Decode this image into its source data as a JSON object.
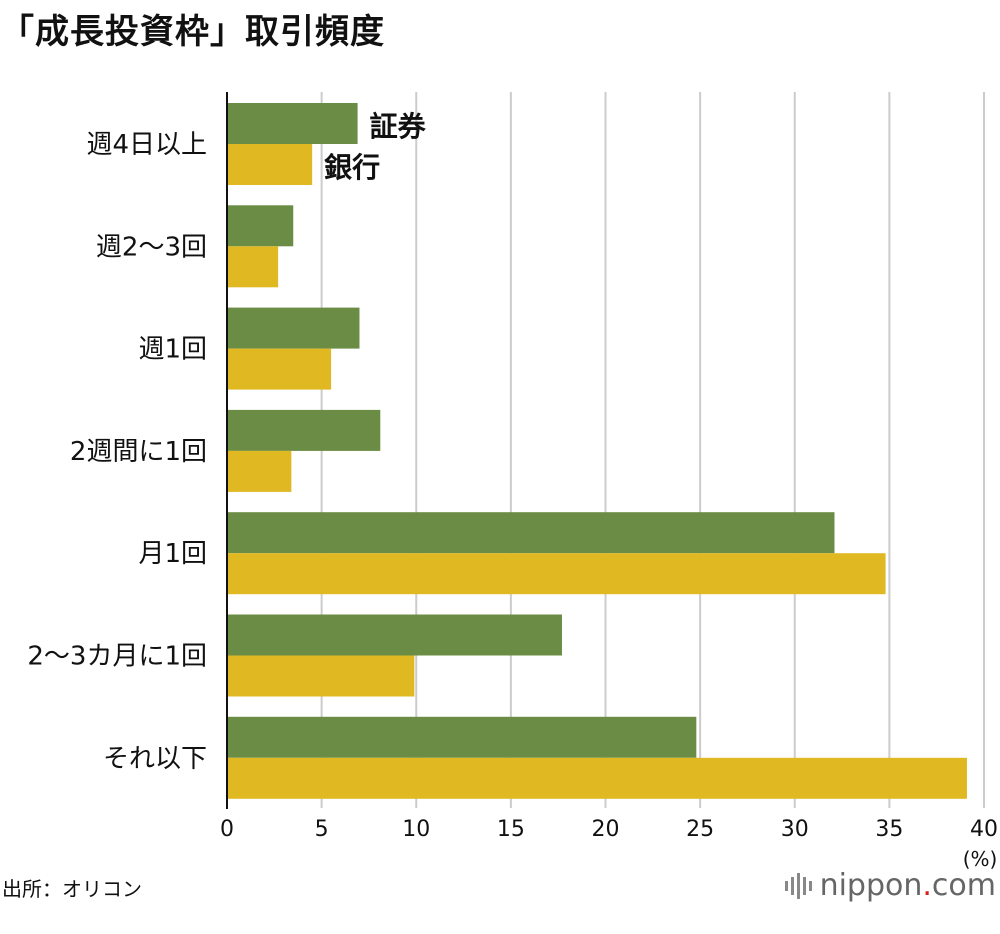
{
  "title": "「成長投資枠」取引頻度",
  "source": "出所：オリコン",
  "brand": {
    "name": "nippon",
    "dot": ".",
    "tld": "com"
  },
  "colors": {
    "securities": "#6a8c45",
    "bank": "#dfb822",
    "grid": "#cccccc",
    "axis": "#111111"
  },
  "chart_data": {
    "type": "bar",
    "orientation": "horizontal",
    "categories": [
      "週4日以上",
      "週2〜3回",
      "週1回",
      "2週間に1回",
      "月1回",
      "2〜3カ月に1回",
      "それ以下"
    ],
    "series": [
      {
        "name": "証券",
        "values": [
          6.9,
          3.5,
          7.0,
          8.1,
          32.1,
          17.7,
          24.8
        ]
      },
      {
        "name": "銀行",
        "values": [
          4.5,
          2.7,
          5.5,
          3.4,
          34.8,
          9.9,
          39.1
        ]
      }
    ],
    "xlim": [
      0,
      40
    ],
    "xticks": [
      0,
      5,
      10,
      15,
      20,
      25,
      30,
      35,
      40
    ],
    "xunit": "(%)",
    "grid": true,
    "legend": "inline, next to first category bars"
  }
}
